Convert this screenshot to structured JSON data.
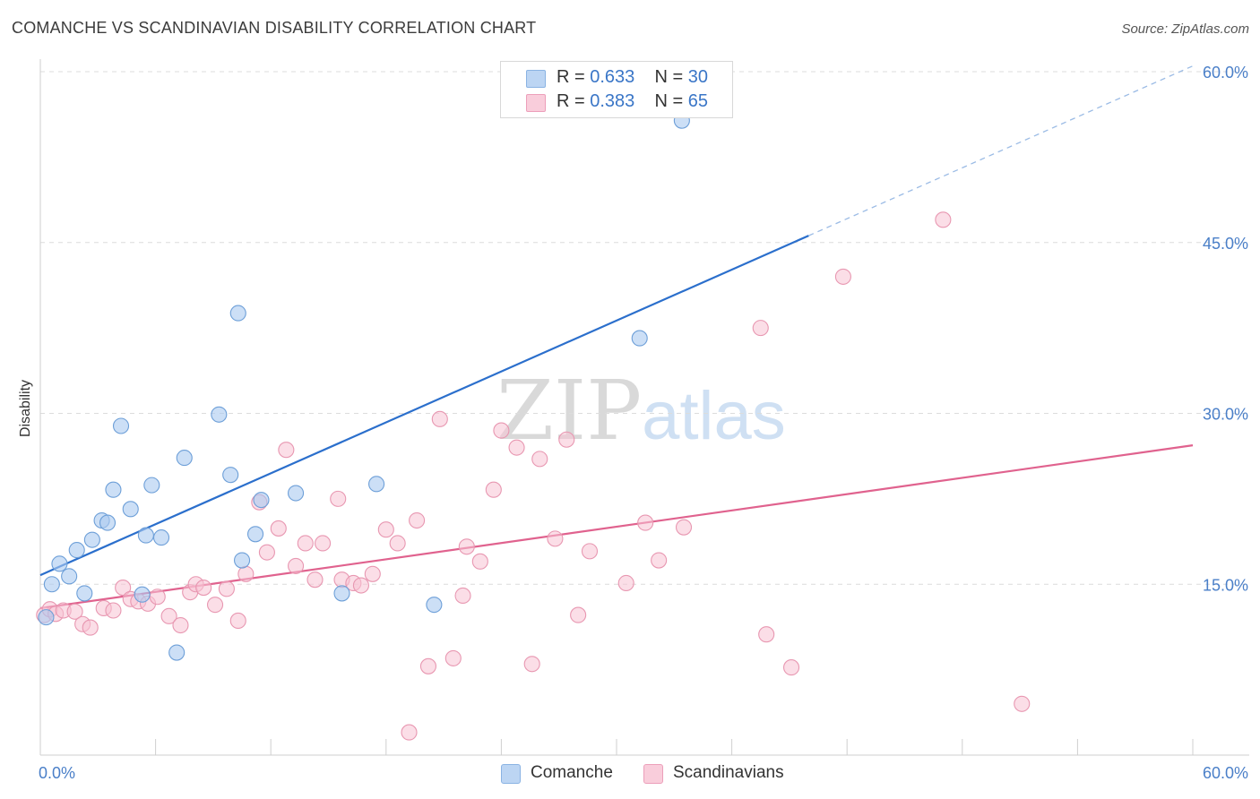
{
  "title": "COMANCHE VS SCANDINAVIAN DISABILITY CORRELATION CHART",
  "source": "Source: ZipAtlas.com",
  "watermark": {
    "zip": "ZIP",
    "atlas": "atlas"
  },
  "legend": {
    "rows": [
      {
        "r_label": "R =",
        "r_value": "0.633",
        "n_label": "N =",
        "n_value": "30"
      },
      {
        "r_label": "R =",
        "r_value": "0.383",
        "n_label": "N =",
        "n_value": "65"
      }
    ]
  },
  "bottom_legend": {
    "series1": "Comanche",
    "series2": "Scandinavians"
  },
  "colors": {
    "comanche_fill": "#aac9f0",
    "comanche_stroke": "#6d9fd8",
    "comanche_line": "#2b6fcc",
    "scandinavian_fill": "#f7c2d3",
    "scandinavian_stroke": "#e897b1",
    "scandinavian_line": "#e0628e",
    "tick_text": "#4a7fc8"
  },
  "chart_data": {
    "type": "scatter",
    "title": "COMANCHE VS SCANDINAVIAN DISABILITY CORRELATION CHART",
    "xlabel": "",
    "ylabel": "Disability",
    "xlim": [
      0,
      60
    ],
    "ylim": [
      0,
      60
    ],
    "x_tick_labels": [
      "0.0%",
      "60.0%"
    ],
    "y_ticks": [
      15,
      30,
      45,
      60
    ],
    "y_tick_labels": [
      "15.0%",
      "30.0%",
      "45.0%",
      "60.0%"
    ],
    "grid": true,
    "legend_position": "top-center",
    "series": [
      {
        "name": "Comanche",
        "r": 0.633,
        "n": 30,
        "trend": {
          "x0": 0,
          "y0": 15.8,
          "x1": 60,
          "y1": 60.5,
          "solid_until_x": 40
        },
        "points": [
          [
            0.3,
            12.1
          ],
          [
            0.6,
            15.0
          ],
          [
            1.0,
            16.8
          ],
          [
            1.5,
            15.7
          ],
          [
            1.9,
            18.0
          ],
          [
            2.3,
            14.2
          ],
          [
            2.7,
            18.9
          ],
          [
            3.2,
            20.6
          ],
          [
            3.5,
            20.4
          ],
          [
            3.8,
            23.3
          ],
          [
            4.2,
            28.9
          ],
          [
            4.7,
            21.6
          ],
          [
            5.3,
            14.1
          ],
          [
            5.5,
            19.3
          ],
          [
            5.8,
            23.7
          ],
          [
            6.3,
            19.1
          ],
          [
            7.1,
            9.0
          ],
          [
            7.5,
            26.1
          ],
          [
            9.3,
            29.9
          ],
          [
            9.9,
            24.6
          ],
          [
            10.3,
            38.8
          ],
          [
            10.5,
            17.1
          ],
          [
            11.2,
            19.4
          ],
          [
            11.5,
            22.4
          ],
          [
            13.3,
            23.0
          ],
          [
            15.7,
            14.2
          ],
          [
            17.5,
            23.8
          ],
          [
            20.5,
            13.2
          ],
          [
            31.2,
            36.6
          ],
          [
            33.4,
            55.7
          ]
        ]
      },
      {
        "name": "Scandinavians",
        "r": 0.383,
        "n": 65,
        "trend": {
          "x0": 0,
          "y0": 12.9,
          "x1": 60,
          "y1": 27.2
        },
        "points": [
          [
            0.2,
            12.3
          ],
          [
            0.5,
            12.8
          ],
          [
            0.8,
            12.4
          ],
          [
            1.2,
            12.7
          ],
          [
            1.8,
            12.6
          ],
          [
            2.2,
            11.5
          ],
          [
            2.6,
            11.2
          ],
          [
            3.3,
            12.9
          ],
          [
            3.8,
            12.7
          ],
          [
            4.3,
            14.7
          ],
          [
            4.7,
            13.7
          ],
          [
            5.1,
            13.5
          ],
          [
            5.6,
            13.3
          ],
          [
            6.1,
            13.9
          ],
          [
            6.7,
            12.2
          ],
          [
            7.3,
            11.4
          ],
          [
            7.8,
            14.3
          ],
          [
            8.1,
            15.0
          ],
          [
            8.5,
            14.7
          ],
          [
            9.1,
            13.2
          ],
          [
            9.7,
            14.6
          ],
          [
            10.3,
            11.8
          ],
          [
            10.7,
            15.9
          ],
          [
            11.4,
            22.2
          ],
          [
            11.8,
            17.8
          ],
          [
            12.4,
            19.9
          ],
          [
            12.8,
            26.8
          ],
          [
            13.3,
            16.6
          ],
          [
            13.8,
            18.6
          ],
          [
            14.3,
            15.4
          ],
          [
            14.7,
            18.6
          ],
          [
            15.5,
            22.5
          ],
          [
            15.7,
            15.4
          ],
          [
            16.3,
            15.1
          ],
          [
            16.7,
            14.9
          ],
          [
            17.3,
            15.9
          ],
          [
            18.0,
            19.8
          ],
          [
            18.6,
            18.6
          ],
          [
            19.2,
            2.0
          ],
          [
            19.6,
            20.6
          ],
          [
            20.2,
            7.8
          ],
          [
            20.8,
            29.5
          ],
          [
            21.5,
            8.5
          ],
          [
            22.0,
            14.0
          ],
          [
            22.2,
            18.3
          ],
          [
            22.9,
            17.0
          ],
          [
            23.6,
            23.3
          ],
          [
            24.0,
            28.5
          ],
          [
            24.8,
            27.0
          ],
          [
            25.6,
            8.0
          ],
          [
            26.0,
            26.0
          ],
          [
            26.8,
            19.0
          ],
          [
            27.4,
            27.7
          ],
          [
            28.0,
            12.3
          ],
          [
            28.6,
            17.9
          ],
          [
            30.5,
            15.1
          ],
          [
            31.5,
            20.4
          ],
          [
            32.2,
            17.1
          ],
          [
            33.5,
            20.0
          ],
          [
            37.5,
            37.5
          ],
          [
            37.8,
            10.6
          ],
          [
            39.1,
            7.7
          ],
          [
            41.8,
            42.0
          ],
          [
            47.0,
            47.0
          ],
          [
            51.1,
            4.5
          ]
        ]
      }
    ]
  }
}
